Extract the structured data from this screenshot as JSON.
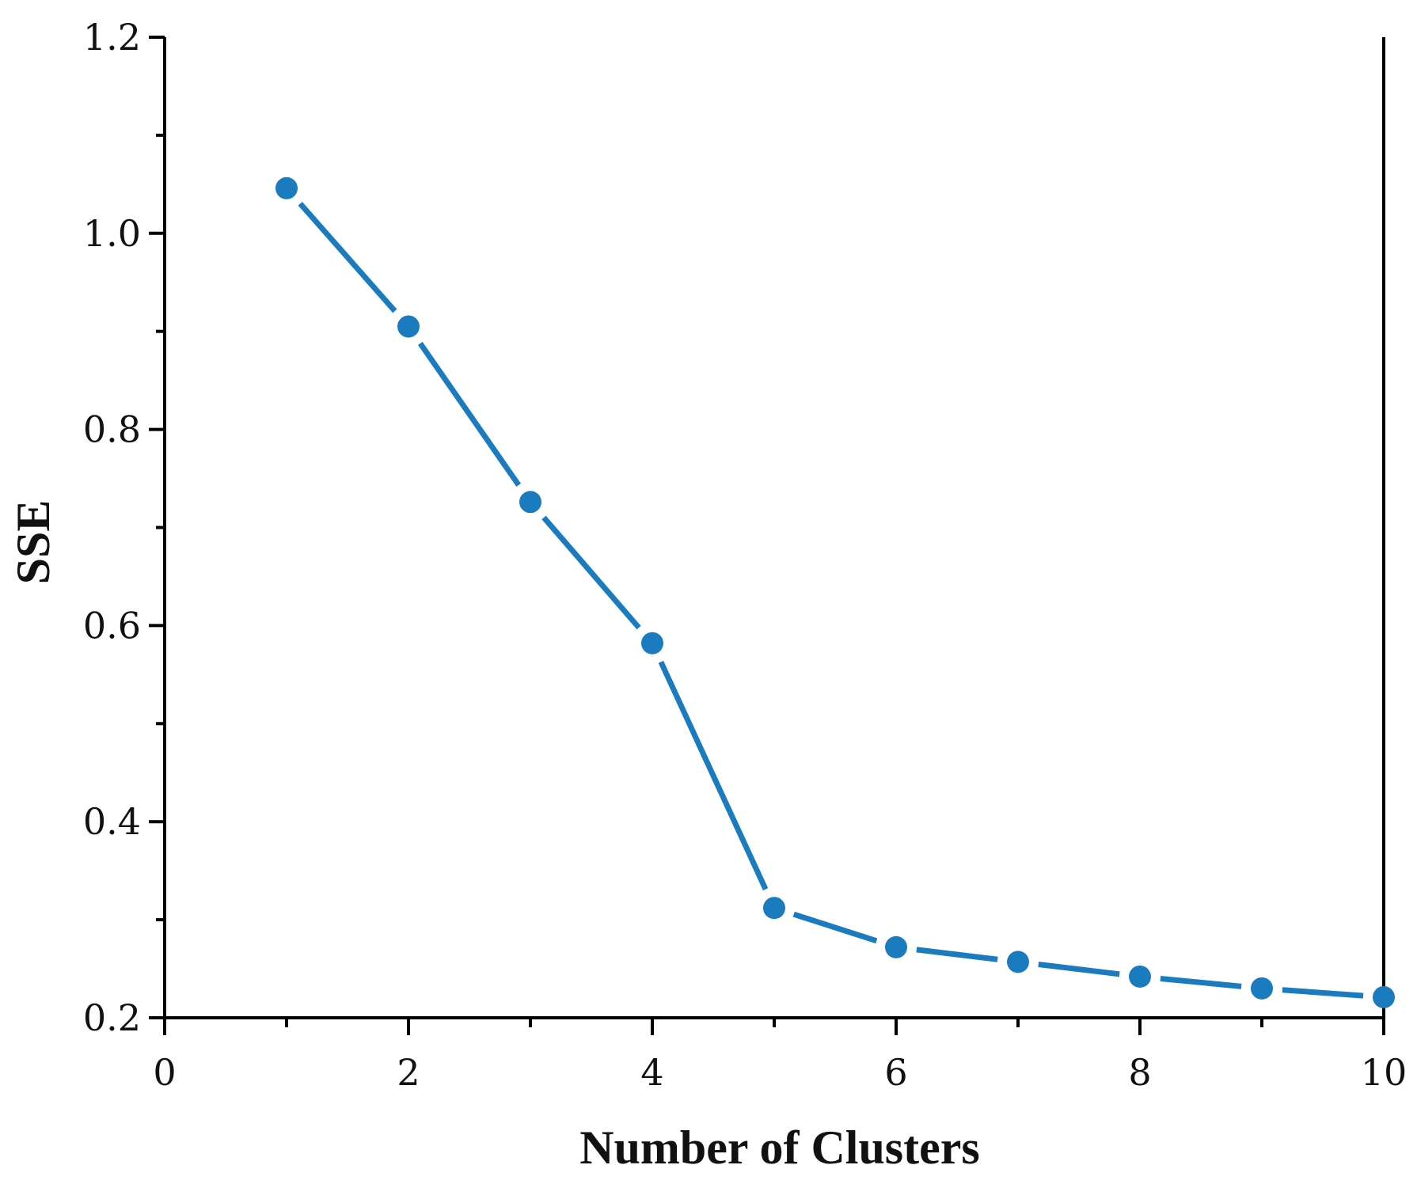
{
  "chart_data": {
    "type": "line",
    "title": "",
    "xlabel": "Number of Clusters",
    "ylabel": "SSE",
    "xlim": [
      0,
      10
    ],
    "ylim": [
      0.2,
      1.2
    ],
    "x_ticks": [
      0,
      2,
      4,
      6,
      8,
      10
    ],
    "x_tick_labels": [
      "0",
      "2",
      "4",
      "6",
      "8",
      "10"
    ],
    "y_ticks": [
      0.2,
      0.4,
      0.6,
      0.8,
      1.0,
      1.2
    ],
    "y_tick_labels": [
      "0.2",
      "0.4",
      "0.6",
      "0.8",
      "1.0",
      "1.2"
    ],
    "x_minor_ticks": [
      1,
      3,
      5,
      7,
      9
    ],
    "y_minor_ticks": [
      0.3,
      0.5,
      0.7,
      0.9,
      1.1
    ],
    "grid": false,
    "legend": "none",
    "series": [
      {
        "color": "#1a7bbf",
        "x": [
          1,
          2,
          3,
          4,
          5,
          6,
          7,
          8,
          9,
          10
        ],
        "y": [
          1.046,
          0.905,
          0.726,
          0.582,
          0.312,
          0.272,
          0.257,
          0.242,
          0.23,
          0.221
        ]
      }
    ]
  }
}
